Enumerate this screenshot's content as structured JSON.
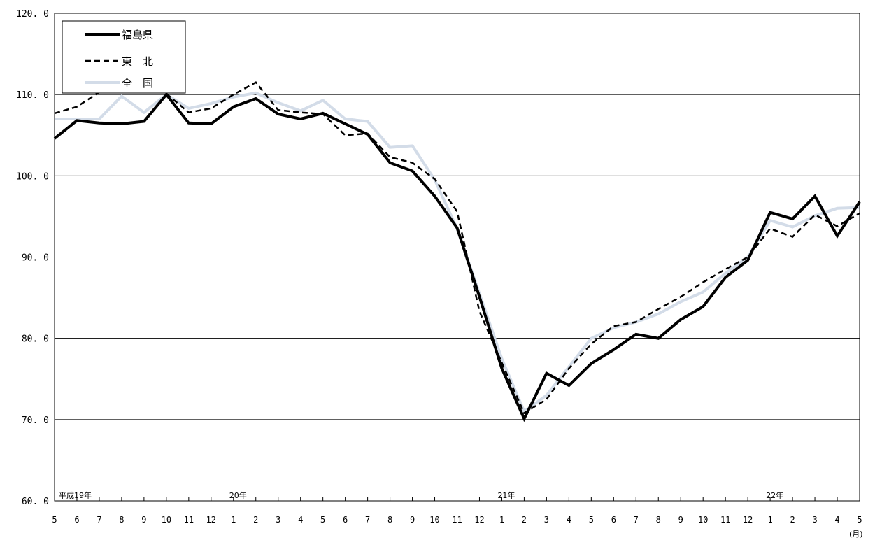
{
  "chart_data": {
    "type": "line",
    "ylim": [
      60,
      120
    ],
    "yticks": [
      "60.0",
      "70.0",
      "80.0",
      "90.0",
      "100.0",
      "110.0",
      "120.0"
    ],
    "categories": [
      "5",
      "6",
      "7",
      "8",
      "9",
      "10",
      "11",
      "12",
      "1",
      "2",
      "3",
      "4",
      "5",
      "6",
      "7",
      "8",
      "9",
      "10",
      "11",
      "12",
      "1",
      "2",
      "3",
      "4",
      "5",
      "6",
      "7",
      "8",
      "9",
      "10",
      "11",
      "12",
      "1",
      "2",
      "3",
      "4",
      "5"
    ],
    "year_labels": [
      {
        "text": "平成19年",
        "index": 0
      },
      {
        "text": "20年",
        "index": 8
      },
      {
        "text": "21年",
        "index": 20
      },
      {
        "text": "22年",
        "index": 32
      }
    ],
    "unit_label": "(月)",
    "grid": true,
    "legend_position": "top-left",
    "series": [
      {
        "name": "福島県",
        "style": "solid-thick",
        "color": "#000000",
        "values": [
          104.6,
          106.8,
          106.5,
          106.4,
          106.7,
          110.0,
          106.5,
          106.4,
          108.5,
          109.5,
          107.6,
          107.0,
          107.7,
          106.4,
          105.1,
          101.6,
          100.6,
          97.5,
          93.6,
          85.1,
          76.3,
          70.1,
          75.7,
          74.2,
          76.9,
          78.6,
          80.5,
          80.0,
          82.3,
          83.9,
          87.5,
          89.6,
          95.5,
          94.7,
          97.5,
          92.6,
          96.8
        ]
      },
      {
        "name": "東　北",
        "style": "dashed",
        "color": "#000000",
        "values": [
          107.7,
          108.5,
          110.3,
          110.6,
          111.0,
          110.1,
          107.8,
          108.3,
          110.0,
          111.5,
          108.1,
          107.8,
          107.6,
          105.0,
          105.2,
          102.3,
          101.6,
          99.6,
          95.6,
          83.3,
          77.0,
          70.8,
          72.5,
          76.3,
          79.3,
          81.5,
          82.0,
          83.6,
          85.1,
          86.9,
          88.5,
          90.0,
          93.5,
          92.5,
          95.2,
          93.8,
          95.4
        ]
      },
      {
        "name": "全　国",
        "style": "solid-light",
        "color": "#d3dce8",
        "values": [
          107.0,
          107.0,
          107.0,
          109.8,
          107.8,
          110.0,
          108.3,
          108.9,
          109.7,
          110.2,
          109.0,
          108.0,
          109.3,
          107.0,
          106.7,
          103.5,
          103.7,
          99.5,
          93.5,
          85.5,
          77.5,
          71.0,
          73.0,
          76.5,
          80.0,
          81.3,
          82.0,
          83.0,
          84.5,
          85.7,
          88.0,
          90.0,
          94.5,
          93.7,
          95.1,
          96.0,
          96.1
        ]
      }
    ]
  }
}
